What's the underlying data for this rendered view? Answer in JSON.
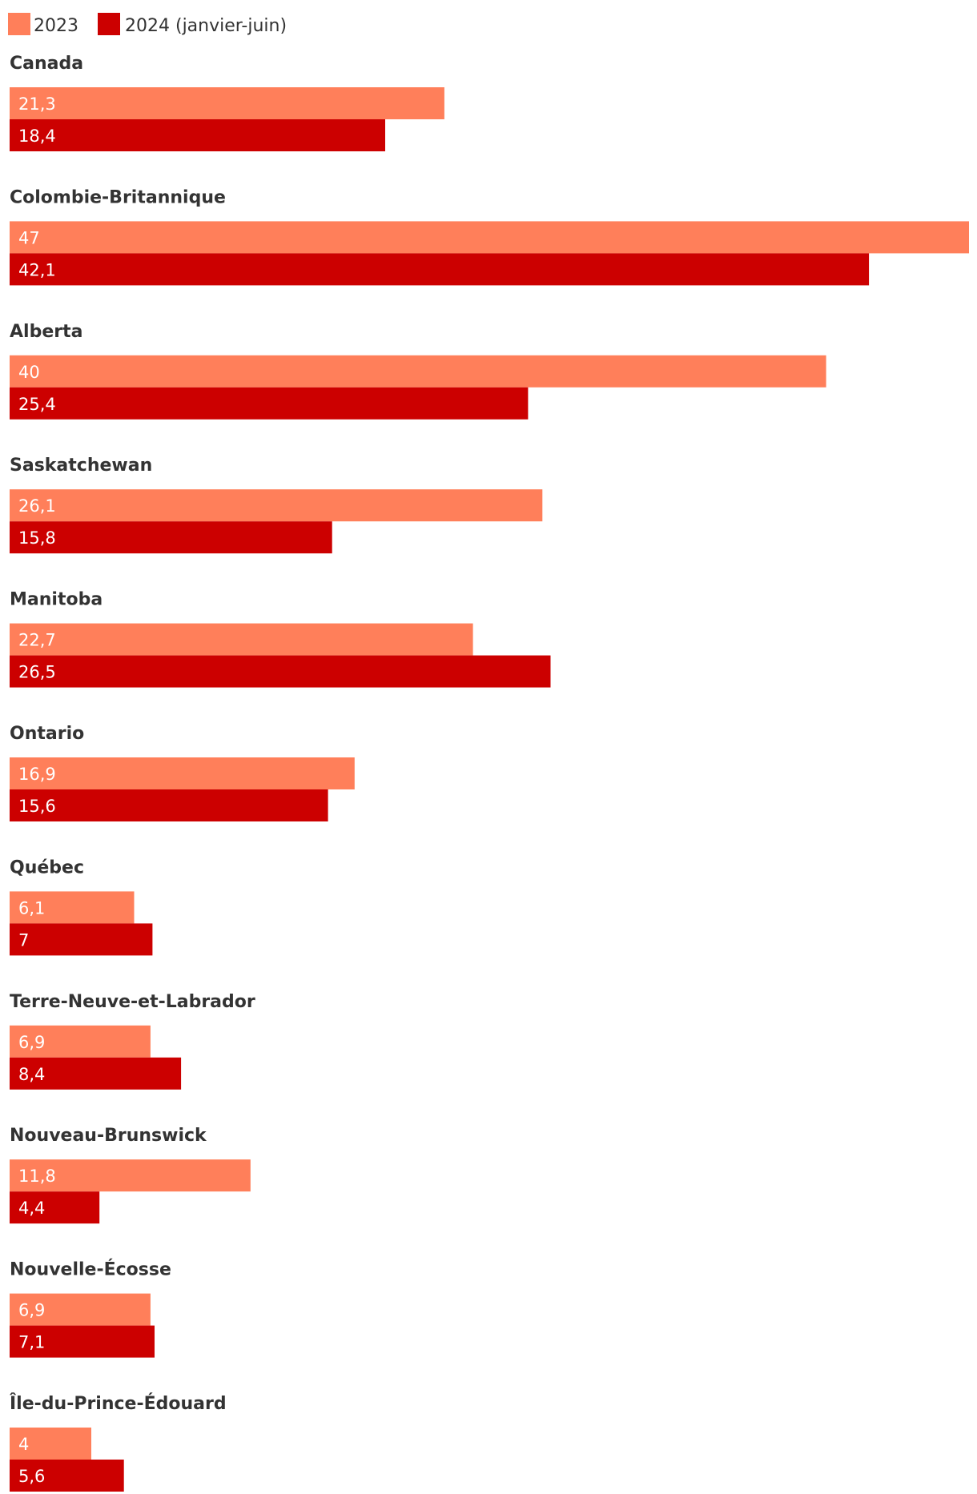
{
  "chart_data": {
    "type": "bar",
    "orientation": "horizontal",
    "title": "",
    "xlabel": "",
    "ylabel": "",
    "grid": false,
    "legend_position": "top-left",
    "xlim": [
      0,
      47
    ],
    "categories": [
      "Canada",
      "Colombie-Britannique",
      "Alberta",
      "Saskatchewan",
      "Manitoba",
      "Ontario",
      "Québec",
      "Terre-Neuve-et-Labrador",
      "Nouveau-Brunswick",
      "Nouvelle-Écosse",
      "Île-du-Prince-Édouard"
    ],
    "series": [
      {
        "name": "2023",
        "color": "#ff7f5a",
        "values": [
          21.3,
          47,
          40,
          26.1,
          22.7,
          16.9,
          6.1,
          6.9,
          11.8,
          6.9,
          4
        ],
        "labels": [
          "21,3",
          "47",
          "40",
          "26,1",
          "22,7",
          "16,9",
          "6,1",
          "6,9",
          "11,8",
          "6,9",
          "4"
        ]
      },
      {
        "name": "2024 (janvier-juin)",
        "color": "#cc0000",
        "values": [
          18.4,
          42.1,
          25.4,
          15.8,
          26.5,
          15.6,
          7,
          8.4,
          4.4,
          7.1,
          5.6
        ],
        "labels": [
          "18,4",
          "42,1",
          "25,4",
          "15,8",
          "26,5",
          "15,6",
          "7",
          "8,4",
          "4,4",
          "7,1",
          "5,6"
        ]
      }
    ]
  }
}
